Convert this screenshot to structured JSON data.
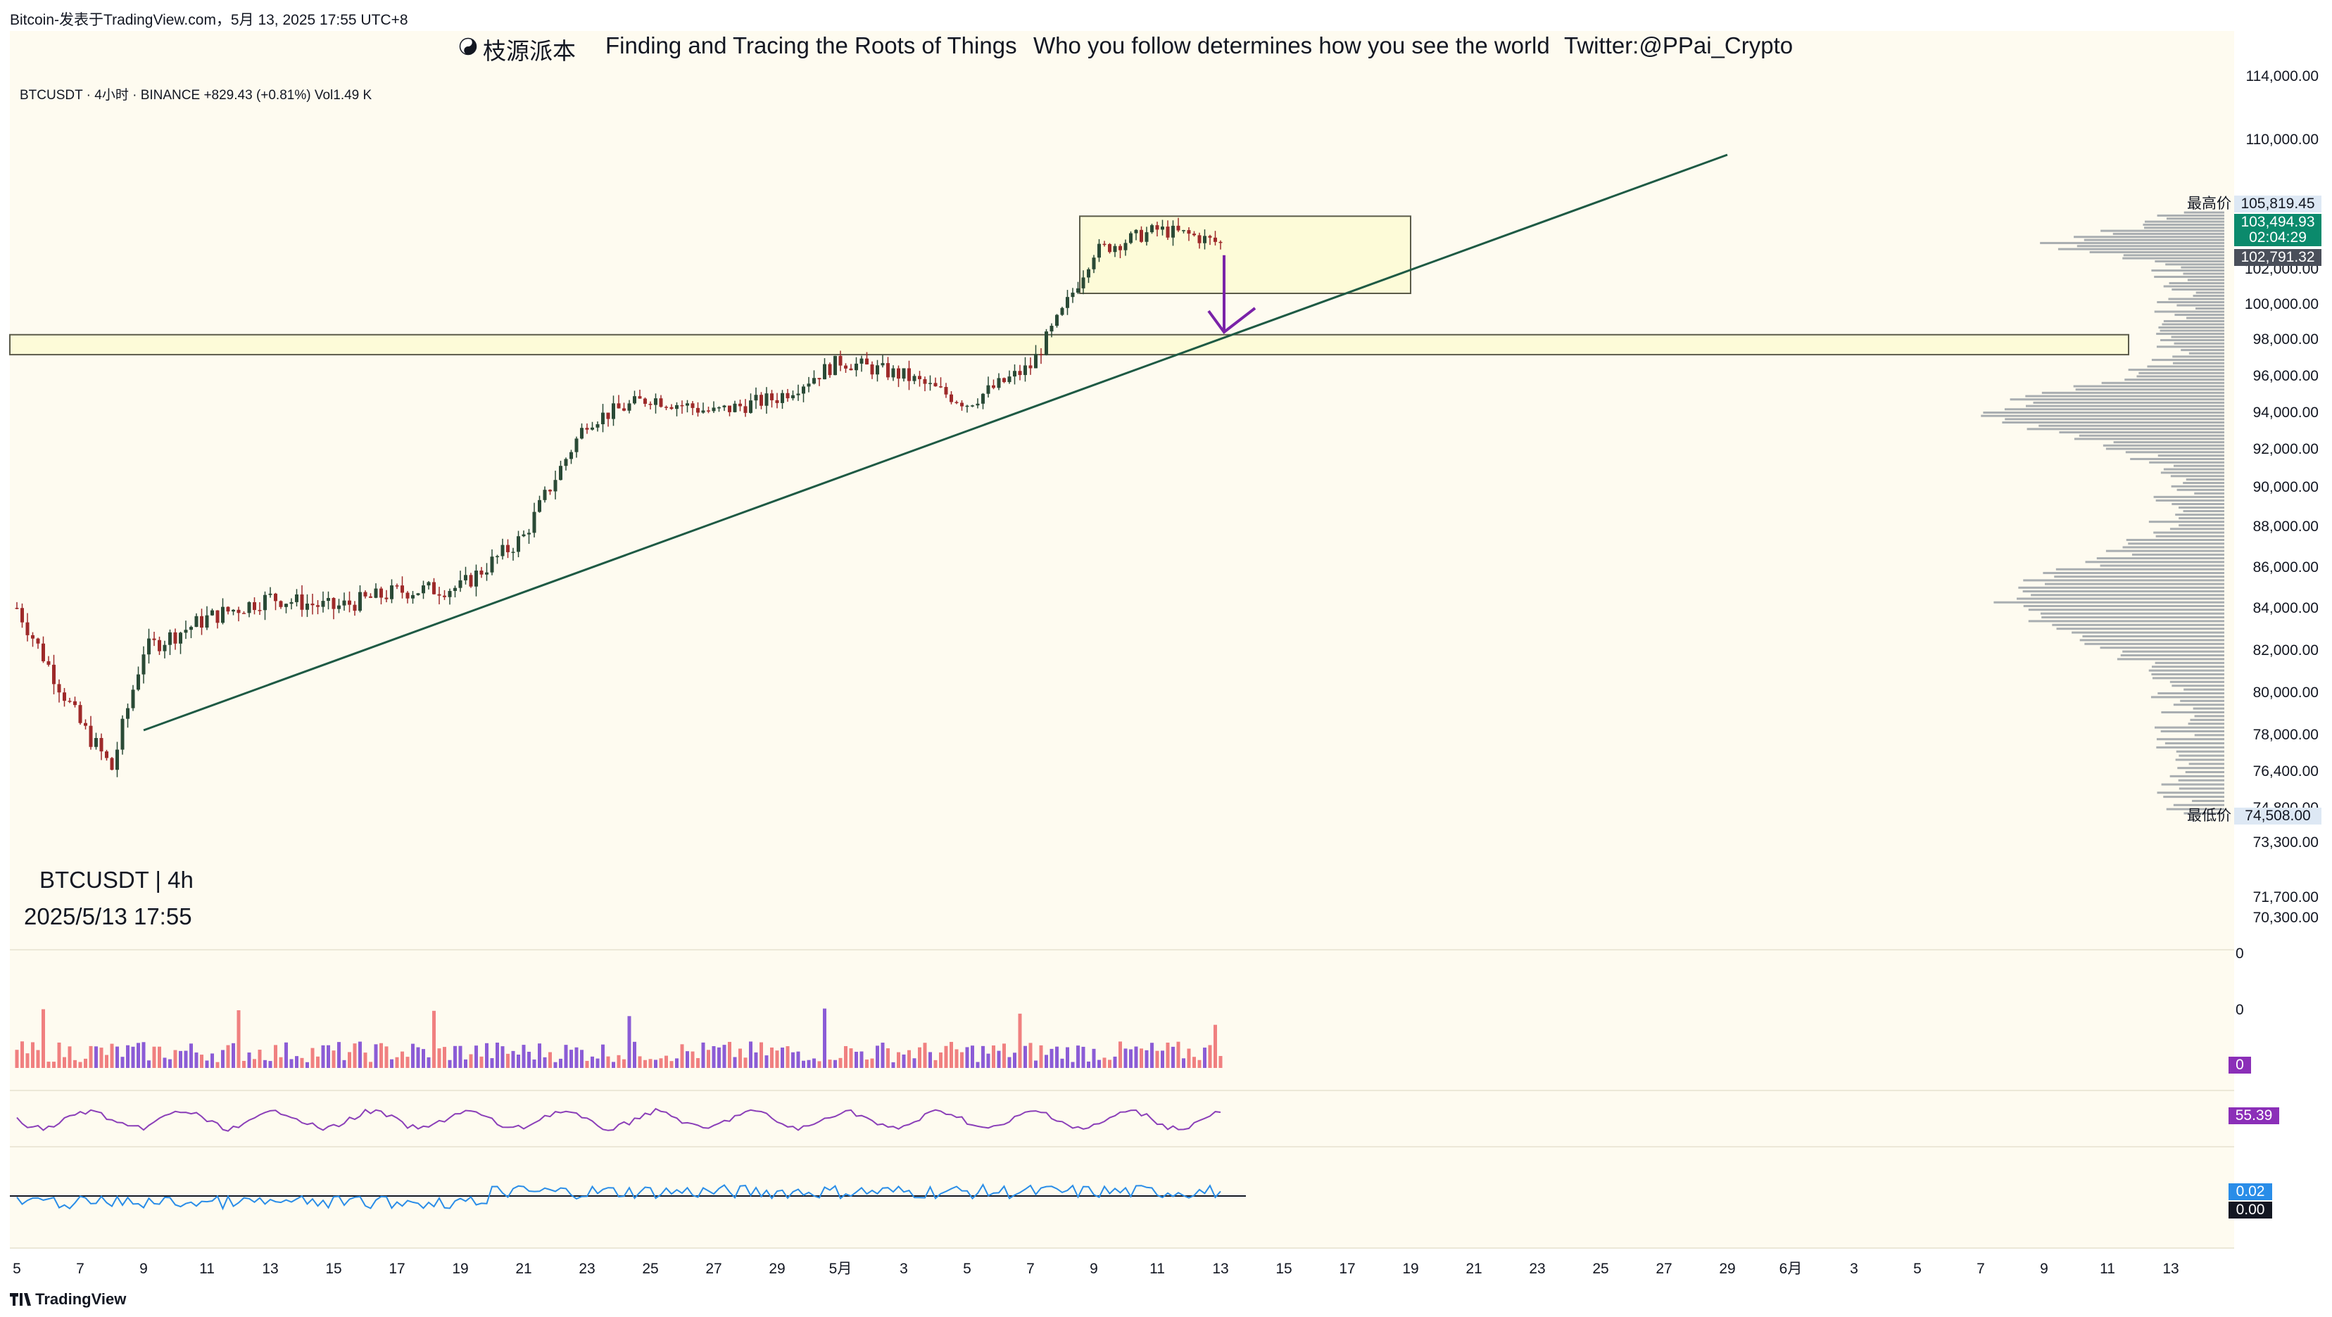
{
  "window_title": "Bitcoin-发表于TradingView.com，5月 13, 2025 17:55 UTC+8",
  "banner": {
    "icon": "yin-yang-icon",
    "brand": "枝源派本",
    "tagline1": "Finding and Tracing the Roots of Things",
    "tagline2": "Who you follow determines how you see the world",
    "twitter": "Twitter:@PPai_Crypto"
  },
  "symbol_line": "BTCUSDT · 4小时 · BINANCE  +829.43 (+0.81%)  Vol1.49 K",
  "timeframe_label": "BTCUSDT | 4h",
  "datetime_label": "2025/5/13 17:55",
  "footer_brand": "TradingView",
  "price_labels": {
    "high_label": "最高价",
    "high_value": "105,819.45",
    "current": "103,494.93",
    "countdown": "02:04:29",
    "prev": "102,791.32",
    "low_label": "最低价",
    "low_value": "74,508.00"
  },
  "indicator_badges": {
    "volume": "0",
    "rsi": "55.39",
    "osc1": "0.02",
    "osc2": "0.00"
  },
  "colors": {
    "background": "#fefbf0",
    "up": "#2a4a36",
    "down": "#9e2a2a",
    "trendline": "#1e5a44",
    "zone_fill": "#fdfbd8",
    "arrow": "#7a22a8",
    "volume_up": "#8b5cd6",
    "volume_down": "#f08080",
    "rsi_line": "#8b3fb8",
    "osc_line": "#2a8de8",
    "osc_neg": "#e0463f",
    "current_badge": "#0b8a6c",
    "rsi_badge": "#8b2fb8",
    "osc_badge": "#2a8de8"
  },
  "chart_data": {
    "type": "candlestick",
    "title": "BTCUSDT · 4小时 · BINANCE",
    "price_axis_ticks": [
      "114,000.00",
      "110,000.00",
      "102,000.00",
      "100,000.00",
      "98,000.00",
      "96,000.00",
      "94,000.00",
      "92,000.00",
      "90,000.00",
      "88,000.00",
      "86,000.00",
      "84,000.00",
      "82,000.00",
      "80,000.00",
      "78,000.00",
      "76,400.00",
      "74,800.00",
      "73,300.00",
      "71,700.00",
      "70,300.00"
    ],
    "volume_axis_ticks": [
      "0",
      "0"
    ],
    "x_axis_ticks": [
      "5",
      "7",
      "9",
      "11",
      "13",
      "15",
      "17",
      "19",
      "21",
      "23",
      "25",
      "27",
      "29",
      "5月",
      "3",
      "5",
      "7",
      "9",
      "11",
      "13",
      "15",
      "17",
      "19",
      "21",
      "23",
      "25",
      "27",
      "29",
      "6月",
      "3",
      "5",
      "7",
      "9",
      "11",
      "13"
    ],
    "high": 105819.45,
    "low": 74508.0,
    "last": 103494.93,
    "change": "+829.43 (+0.81%)",
    "candles_daily_close": [
      {
        "date": "04-05",
        "close": 84000
      },
      {
        "date": "04-07",
        "close": 78500
      },
      {
        "date": "04-08",
        "close": 76500
      },
      {
        "date": "04-09",
        "close": 82000
      },
      {
        "date": "04-11",
        "close": 83500
      },
      {
        "date": "04-13",
        "close": 84500
      },
      {
        "date": "04-15",
        "close": 84000
      },
      {
        "date": "04-17",
        "close": 84800
      },
      {
        "date": "04-19",
        "close": 85000
      },
      {
        "date": "04-21",
        "close": 87500
      },
      {
        "date": "04-23",
        "close": 93500
      },
      {
        "date": "04-25",
        "close": 94800
      },
      {
        "date": "04-27",
        "close": 94000
      },
      {
        "date": "04-29",
        "close": 94800
      },
      {
        "date": "05-01",
        "close": 96800
      },
      {
        "date": "05-03",
        "close": 96000
      },
      {
        "date": "05-05",
        "close": 94500
      },
      {
        "date": "05-07",
        "close": 96500
      },
      {
        "date": "05-08",
        "close": 99500
      },
      {
        "date": "05-09",
        "close": 103000
      },
      {
        "date": "05-11",
        "close": 104300
      },
      {
        "date": "05-12",
        "close": 104000
      },
      {
        "date": "05-13",
        "close": 103494.93
      }
    ],
    "annotations": {
      "resistance_zone": [
        97150,
        98250
      ],
      "range_box": {
        "from": "05-09",
        "to": "05-19",
        "low": 100600,
        "high": 105100
      },
      "trendline": [
        {
          "date": "04-09",
          "price": 78200
        },
        {
          "date": "05-29",
          "price": 109000
        }
      ],
      "arrow": {
        "date": "05-14",
        "from": 102800,
        "to": 98400
      }
    }
  }
}
